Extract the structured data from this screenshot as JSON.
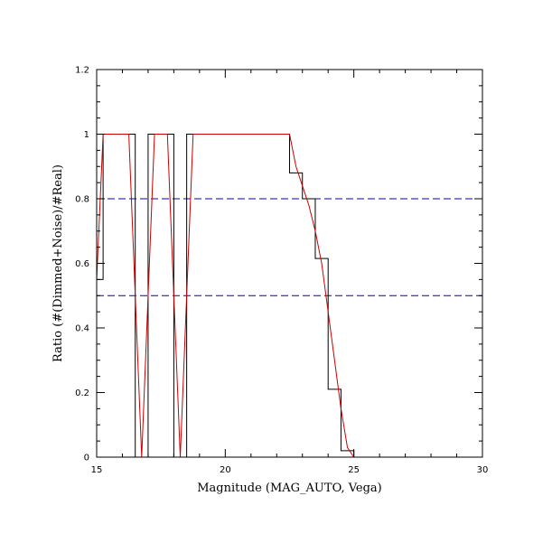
{
  "chart_data": {
    "type": "line",
    "title": "",
    "xlabel": "Magnitude (MAG_AUTO, Vega)",
    "ylabel": "Ratio (#(Dimmed+Noise)/#Real)",
    "xlim": [
      15,
      30
    ],
    "ylim": [
      0,
      1.2
    ],
    "x_ticks": [
      15,
      20,
      25,
      30
    ],
    "x_tick_labels": [
      "15",
      "20",
      "25",
      "30"
    ],
    "y_ticks": [
      0,
      0.2,
      0.4,
      0.6,
      0.8,
      1,
      1.2
    ],
    "y_tick_labels": [
      "0",
      "0.2",
      "0.4",
      "0.6",
      "0.8",
      "1",
      "1.2"
    ],
    "grid": false,
    "legend": "none",
    "reference_lines": [
      {
        "y": 0.8,
        "color": "#0000cc",
        "style": "dashed"
      },
      {
        "y": 0.5,
        "color": "#0000cc",
        "style": "dashed"
      }
    ],
    "series": [
      {
        "style": "step",
        "color": "#000000",
        "bin_edges": [
          15,
          15.25,
          15.5,
          15.75,
          16,
          16.25,
          16.5,
          16.75,
          17,
          17.25,
          17.5,
          17.75,
          18,
          18.25,
          18.5,
          18.75,
          19,
          19.25,
          19.5,
          19.75,
          20,
          20.25,
          20.5,
          20.75,
          21,
          21.25,
          21.5,
          21.75,
          22,
          22.25,
          22.5,
          22.75,
          23,
          23.25,
          23.5,
          23.75,
          24,
          24.25,
          24.5,
          24.75,
          25,
          25.25,
          25.5,
          25.75,
          26,
          26.25,
          26.5,
          26.75,
          27,
          27.25,
          27.5,
          27.75,
          28,
          28.25,
          28.5,
          28.75,
          29,
          29.25,
          29.5,
          29.75,
          30
        ],
        "values": [
          0.55,
          1,
          1,
          1,
          1,
          1,
          0,
          0,
          1,
          1,
          1,
          1,
          0,
          0,
          1,
          1,
          1,
          1,
          1,
          1,
          1,
          1,
          1,
          1,
          1,
          1,
          1,
          1,
          1,
          1,
          0.88,
          0.88,
          0.8,
          0.8,
          0.615,
          0.615,
          0.21,
          0.21,
          0.02,
          0.02,
          0,
          0,
          0,
          0,
          0,
          0,
          0,
          0,
          0,
          0,
          0,
          0,
          0,
          0,
          0,
          0,
          0,
          0,
          0,
          0
        ]
      },
      {
        "style": "line",
        "color": "#cc0000",
        "x": [
          15,
          15.25,
          15.5,
          16.25,
          16.5,
          16.75,
          17,
          17.25,
          17.75,
          18,
          18.25,
          18.5,
          18.75,
          22.5,
          22.75,
          23,
          23.25,
          23.5,
          23.75,
          24,
          24.25,
          24.5,
          24.75,
          25,
          30
        ],
        "values": [
          0.55,
          1,
          1,
          1,
          0.5,
          0,
          0.5,
          1,
          1,
          0.5,
          0,
          0.5,
          1,
          1,
          0.9,
          0.84,
          0.78,
          0.7,
          0.6,
          0.45,
          0.3,
          0.15,
          0.03,
          0,
          0
        ]
      }
    ]
  }
}
